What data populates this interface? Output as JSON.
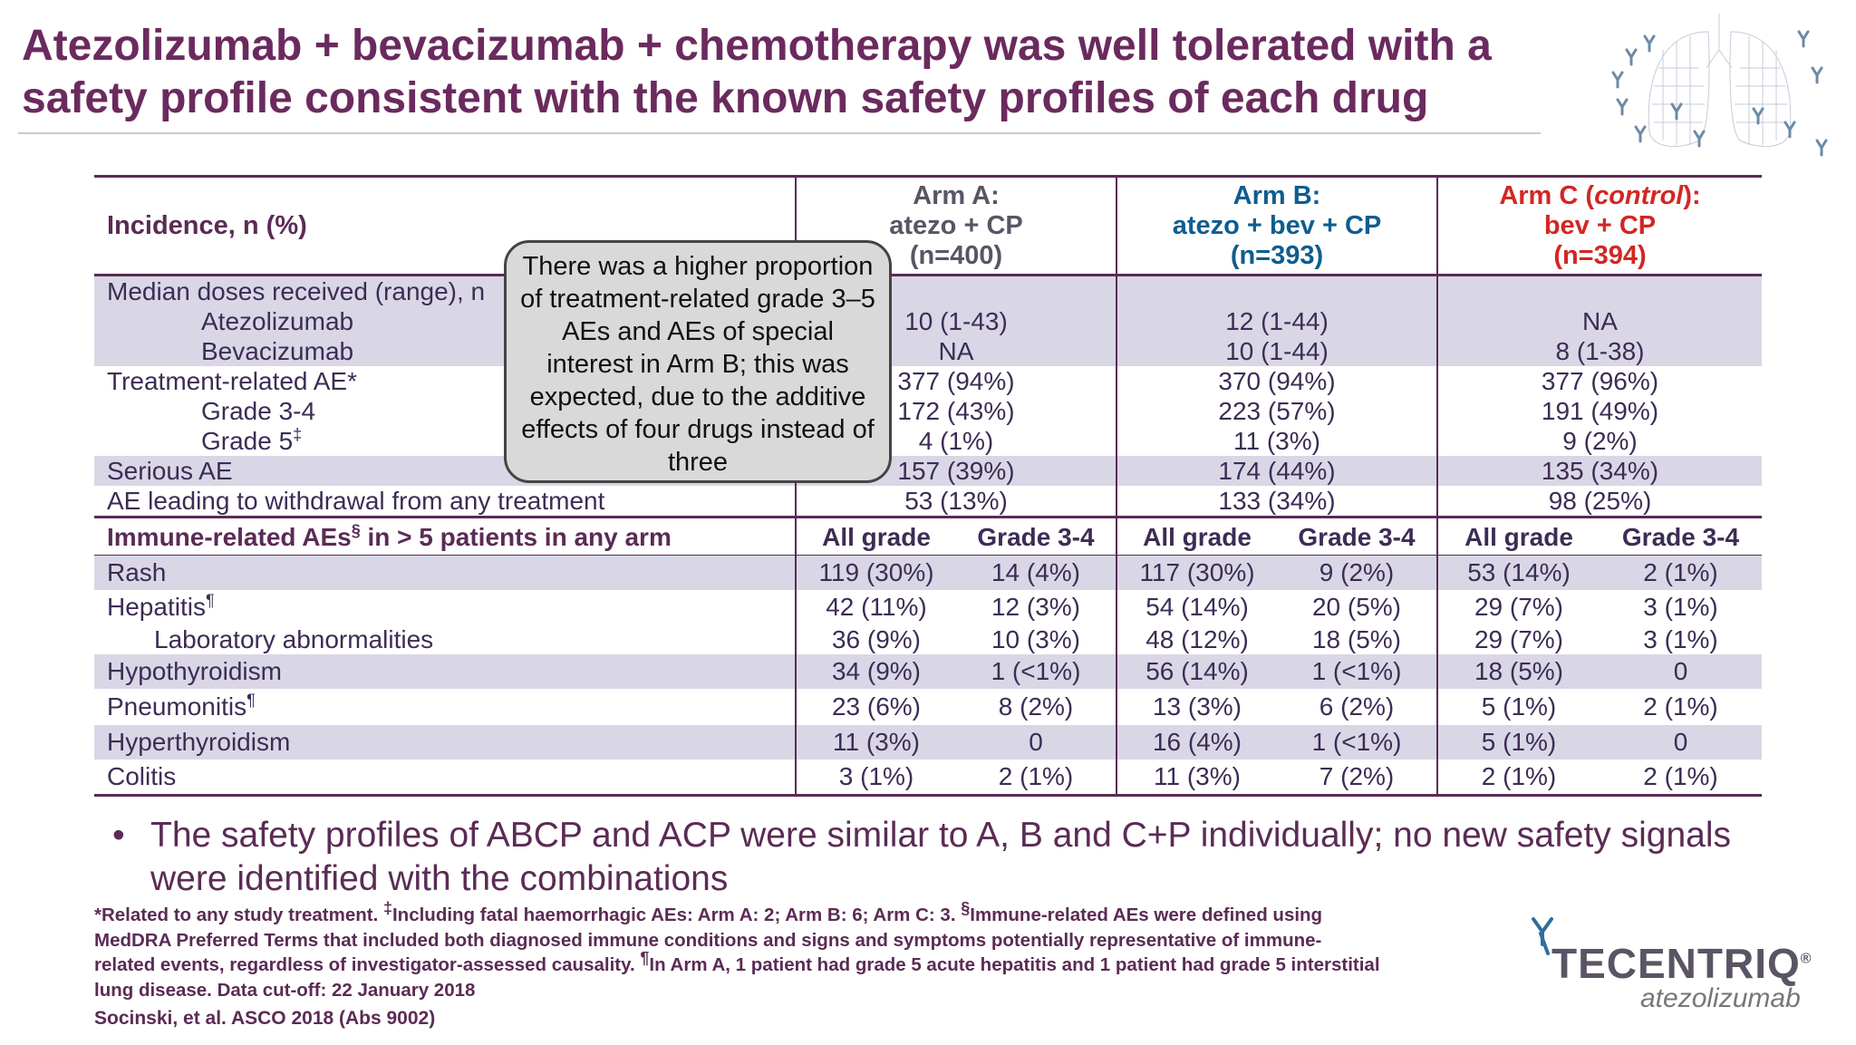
{
  "title": "Atezolizumab + bevacizumab + chemotherapy was well tolerated with a safety profile consistent with the known safety profiles of each drug",
  "header": {
    "label": "Incidence, n (%)",
    "armA": [
      "Arm A:",
      "atezo + CP",
      "(n=400)"
    ],
    "armB": [
      "Arm B:",
      "atezo + bev + CP",
      "(n=393)"
    ],
    "armC_prefix": "Arm C (",
    "armC_italic": "control",
    "armC_suffix": "):",
    "armC": [
      "bev + CP",
      "(n=394)"
    ]
  },
  "summary_rows": {
    "doses": {
      "label": "Median doses received (range), n"
    },
    "atezo": {
      "label": "Atezolizumab",
      "a": "10 (1-43)",
      "b": "12 (1-44)",
      "c": "NA"
    },
    "bev": {
      "label": "Bevacizumab",
      "a": "NA",
      "b": "10 (1-44)",
      "c": "8 (1-38)"
    },
    "trae": {
      "label": "Treatment-related AE*",
      "a": "377 (94%)",
      "b": "370 (94%)",
      "c": "377 (96%)"
    },
    "g34": {
      "label": "Grade 3-4",
      "a": "172 (43%)",
      "b": "223 (57%)",
      "c": "191 (49%)"
    },
    "g5": {
      "label": "Grade 5",
      "sup": "‡",
      "a": "4 (1%)",
      "b": "11 (3%)",
      "c": "9 (2%)"
    },
    "serious": {
      "label": "Serious AE",
      "a": "157 (39%)",
      "b": "174 (44%)",
      "c": "135 (34%)"
    },
    "withdrawal": {
      "label": "AE leading to withdrawal from any treatment",
      "a": "53 (13%)",
      "b": "133 (34%)",
      "c": "98 (25%)"
    }
  },
  "immune_header": {
    "label_pre": "Immune-related AEs",
    "label_sup": "§",
    "label_post": " in > 5 patients in any arm",
    "all_grade": "All grade",
    "grade34": "Grade 3-4"
  },
  "immune_rows": {
    "rash": {
      "label": "Rash",
      "v": [
        "119 (30%)",
        "14 (4%)",
        "117 (30%)",
        "9 (2%)",
        "53 (14%)",
        "2 (1%)"
      ]
    },
    "hepatitis": {
      "label": "Hepatitis",
      "sup": "¶",
      "v": [
        "42 (11%)",
        "12 (3%)",
        "54 (14%)",
        "20 (5%)",
        "29 (7%)",
        "3 (1%)"
      ]
    },
    "lab": {
      "label": "Laboratory abnormalities",
      "v": [
        "36 (9%)",
        "10 (3%)",
        "48 (12%)",
        "18 (5%)",
        "29 (7%)",
        "3 (1%)"
      ]
    },
    "hypo": {
      "label": "Hypothyroidism",
      "v": [
        "34 (9%)",
        "1 (<1%)",
        "56 (14%)",
        "1 (<1%)",
        "18 (5%)",
        "0"
      ]
    },
    "pneum": {
      "label": "Pneumonitis",
      "sup": "¶",
      "v": [
        "23 (6%)",
        "8 (2%)",
        "13 (3%)",
        "6 (2%)",
        "5 (1%)",
        "2 (1%)"
      ]
    },
    "hyper": {
      "label": "Hyperthyroidism",
      "v": [
        "11 (3%)",
        "0",
        "16 (4%)",
        "1 (<1%)",
        "5 (1%)",
        "0"
      ]
    },
    "colitis": {
      "label": "Colitis",
      "v": [
        "3 (1%)",
        "2 (1%)",
        "11 (3%)",
        "7 (2%)",
        "2 (1%)",
        "2 (1%)"
      ]
    }
  },
  "callout": "There was a higher proportion of treatment-related grade 3–5 AEs and AEs of special interest in Arm B; this was expected, due to the additive effects of four drugs instead of three",
  "bullet": "The safety profiles of ABCP and ACP were similar to A, B and C+P individually; no new safety signals were identified with the combinations",
  "footnote": {
    "p1": "*Related to any study treatment. ",
    "s1": "‡",
    "p2": "Including fatal haemorrhagic AEs: Arm A: 2; Arm B: 6; Arm C: 3. ",
    "s2": "§",
    "p3": "Immune-related AEs were defined using MedDRA Preferred Terms that included both diagnosed immune conditions and signs and symptoms potentially representative of immune-related events, regardless of investigator-assessed causality. ",
    "s3": "¶",
    "p4": "In Arm A, 1 patient had grade 5 acute hepatitis and 1 patient had grade 5 interstitial lung disease. Data cut-off: 22 January 2018"
  },
  "citation": "Socinski, et al. ASCO 2018 (Abs 9002)",
  "logo": {
    "brand": "TECENTRIQ",
    "registered": "®",
    "generic": "atezolizumab"
  },
  "colors": {
    "title": "#6b2a5e",
    "armB": "#0e5d8f",
    "armC": "#d32623",
    "shade": "#d9d7e6"
  }
}
